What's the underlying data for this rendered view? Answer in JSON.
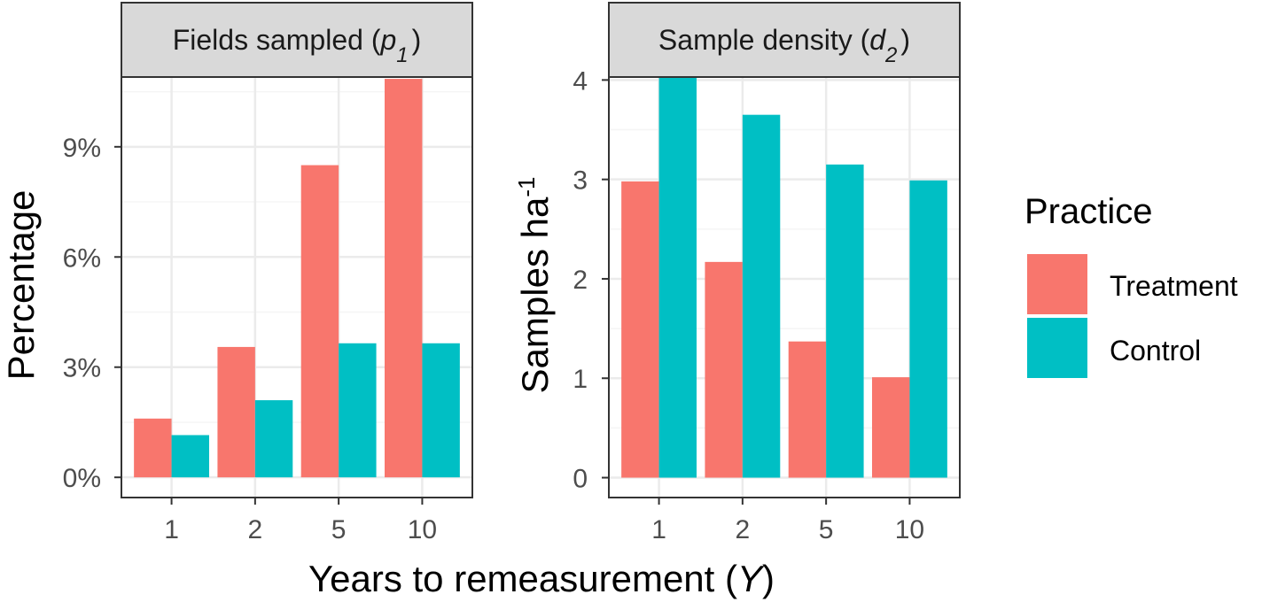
{
  "chart_data": [
    {
      "type": "bar",
      "panel": "left",
      "title": "Fields sampled (p1)",
      "title_parts": {
        "text": "Fields sampled (",
        "var": "p",
        "sub": "1",
        "close": ")"
      },
      "ylabel": "Percentage",
      "categories": [
        "1",
        "2",
        "5",
        "10"
      ],
      "ylim": [
        -0.55,
        10.9
      ],
      "yticks": [
        0,
        3,
        6,
        9
      ],
      "ytick_labels": [
        "0%",
        "3%",
        "6%",
        "9%"
      ],
      "series": [
        {
          "name": "Treatment",
          "values": [
            1.6,
            3.55,
            8.5,
            10.85
          ]
        },
        {
          "name": "Control",
          "values": [
            1.15,
            2.1,
            3.65,
            3.65
          ]
        }
      ]
    },
    {
      "type": "bar",
      "panel": "right",
      "title": "Sample density (d2)",
      "title_parts": {
        "text": "Sample density (",
        "var": "d",
        "sub": "2",
        "close": ")"
      },
      "ylabel": "Samples ha-1",
      "ylabel_parts": {
        "text": "Samples ha",
        "sup": "-1"
      },
      "categories": [
        "1",
        "2",
        "5",
        "10"
      ],
      "ylim": [
        -0.2,
        4.03
      ],
      "yticks": [
        0,
        1,
        2,
        3,
        4
      ],
      "ytick_labels": [
        "0",
        "1",
        "2",
        "3",
        "4"
      ],
      "series": [
        {
          "name": "Treatment",
          "values": [
            2.98,
            2.17,
            1.37,
            1.01
          ]
        },
        {
          "name": "Control",
          "values": [
            4.03,
            3.65,
            3.15,
            2.99
          ]
        }
      ]
    }
  ],
  "xlabel": "Years to remeasurement (Y)",
  "xlabel_parts": {
    "text": "Years to remeasurement (",
    "var": "Y",
    "close": ")"
  },
  "legend": {
    "title": "Practice",
    "items": [
      {
        "label": "Treatment",
        "color": "#F8766D"
      },
      {
        "label": "Control",
        "color": "#00BFC4"
      }
    ]
  },
  "colors": {
    "treatment": "#F8766D",
    "control": "#00BFC4",
    "strip_fill": "#D9D9D9",
    "grid_major": "#EBEBEB",
    "grid_minor": "#F5F5F5"
  }
}
